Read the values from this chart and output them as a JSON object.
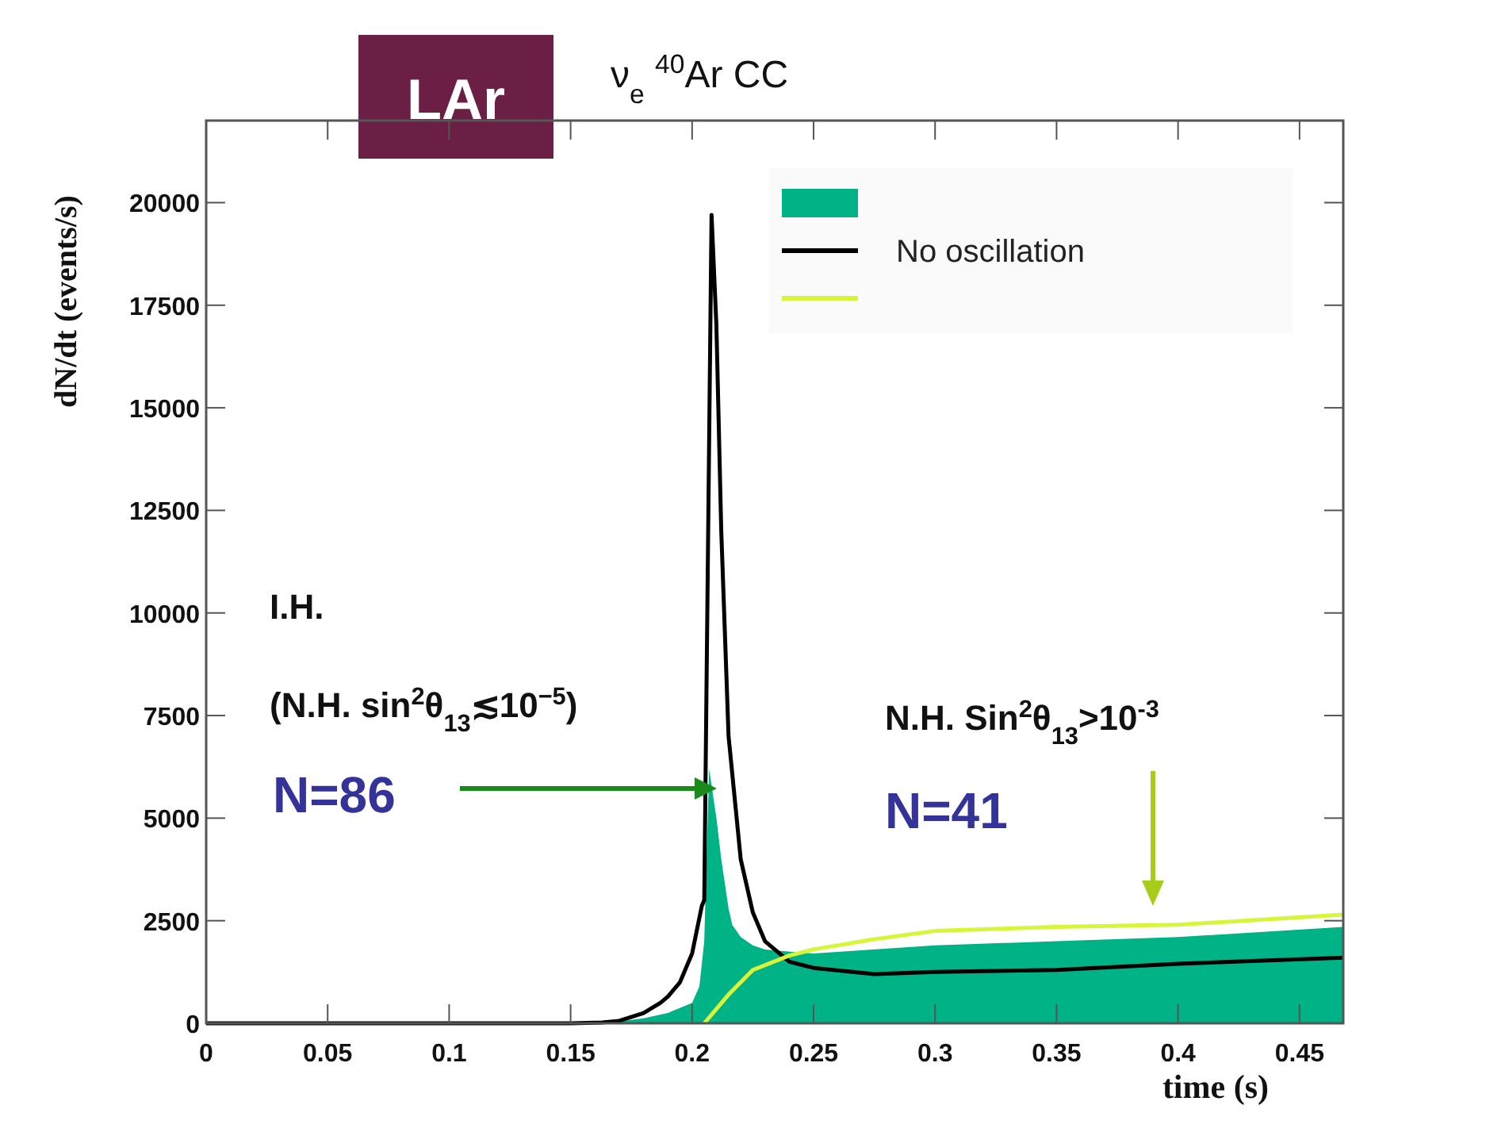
{
  "chart_data": {
    "type": "line",
    "title": "ν$_{e}$ $^{40}$Ar CC",
    "subtitle": "LAr",
    "xlabel": "time (s)",
    "ylabel": "dN/dt (events/s)",
    "xlim": [
      0,
      0.468
    ],
    "ylim": [
      0,
      22000
    ],
    "xticks": [
      0,
      0.05,
      0.1,
      0.15,
      0.2,
      0.25,
      0.3,
      0.35,
      0.4,
      0.45
    ],
    "yticks": [
      0,
      2500,
      5000,
      7500,
      10000,
      12500,
      15000,
      17500,
      20000
    ],
    "grid": false,
    "legend": "top right",
    "marker": "none",
    "line_style": "solid",
    "series": [
      {
        "type": "area",
        "color": "#00b386",
        "x": [
          0,
          0.16,
          0.17,
          0.18,
          0.19,
          0.2,
          0.203,
          0.205,
          0.207,
          0.21,
          0.212,
          0.215,
          0.2165,
          0.22,
          0.225,
          0.23,
          0.25,
          0.3,
          0.35,
          0.4,
          0.468
        ],
        "values": [
          0,
          0,
          50,
          120,
          250,
          500,
          900,
          2000,
          6200,
          5000,
          4000,
          2800,
          2400,
          2100,
          1900,
          1800,
          1700,
          1900,
          2000,
          2100,
          2350
        ]
      },
      {
        "name": "No oscillation",
        "color": "#000000",
        "x": [
          0,
          0.15,
          0.163,
          0.17,
          0.18,
          0.187,
          0.19,
          0.195,
          0.2,
          0.204,
          0.205,
          0.208,
          0.21,
          0.212,
          0.215,
          0.22,
          0.225,
          0.23,
          0.24,
          0.25,
          0.275,
          0.3,
          0.35,
          0.4,
          0.468
        ],
        "values": [
          0,
          0,
          20,
          60,
          250,
          500,
          650,
          1000,
          1700,
          2860,
          3000,
          19700,
          17000,
          12000,
          7000,
          4000,
          2700,
          2000,
          1500,
          1350,
          1200,
          1250,
          1300,
          1450,
          1600
        ]
      },
      {
        "color": "#d8f53a",
        "x": [
          0.205,
          0.21,
          0.215,
          0.225,
          0.24,
          0.25,
          0.275,
          0.3,
          0.35,
          0.4,
          0.468
        ],
        "values": [
          0,
          350,
          700,
          1300,
          1650,
          1800,
          2050,
          2250,
          2350,
          2400,
          2650
        ]
      }
    ],
    "annotations": [
      "I.H.",
      "(N.H. sin$^{2}$θ$_{13}$≲10$^{−5}$)",
      "N=86",
      "N.H. Sin$^{2}$θ$_{13}$>10$^{-3}$",
      "N=41"
    ]
  }
}
